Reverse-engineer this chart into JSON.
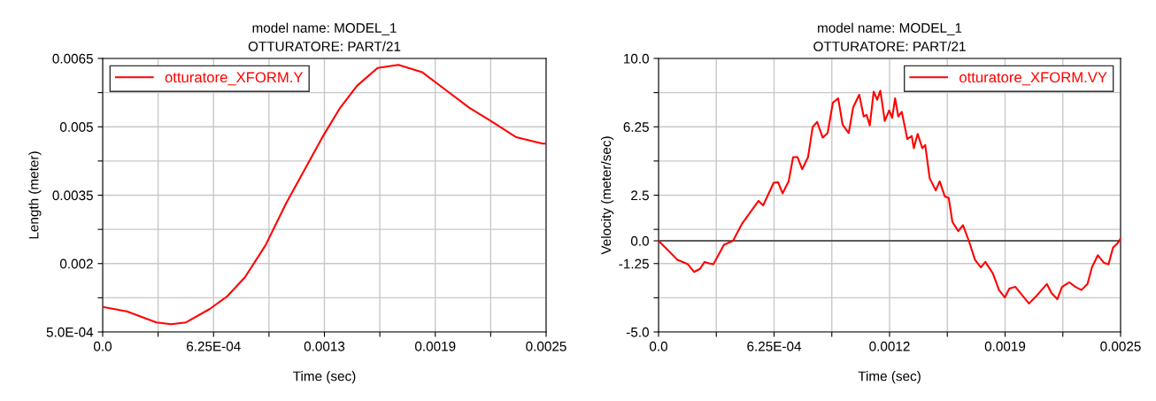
{
  "chart_data": [
    {
      "type": "line",
      "title": "model name: MODEL_1",
      "subtitle": "OTTURATORE: PART/21",
      "xlabel": "Time (sec)",
      "ylabel": "Length (meter)",
      "series": [
        {
          "name": "otturatore_XFORM.Y",
          "color": "#ff0000",
          "x": [
            0,
            0.000136,
            0.000303,
            0.000386,
            0.00047,
            0.000602,
            0.000702,
            0.000802,
            0.000918,
            0.001034,
            0.001134,
            0.001234,
            0.001334,
            0.001434,
            0.00155,
            0.001667,
            0.0018,
            0.001933,
            0.002066,
            0.0022,
            0.002332,
            0.00248,
            0.0025
          ],
          "values": [
            0.00105,
            0.00095,
            0.00071,
            0.00067,
            0.00071,
            0.001,
            0.00128,
            0.0017,
            0.0024,
            0.00332,
            0.00403,
            0.00474,
            0.00539,
            0.0059,
            0.00629,
            0.00636,
            0.0062,
            0.00581,
            0.00542,
            0.0051,
            0.00477,
            0.00463,
            0.00463
          ]
        }
      ],
      "xlim": [
        0,
        0.0025
      ],
      "ylim": [
        0.0005,
        0.0065
      ],
      "xticks": [
        {
          "value": 0,
          "label": "0.0"
        },
        {
          "value": 0.0003125,
          "label": null
        },
        {
          "value": 0.000625,
          "label": "6.25E-04"
        },
        {
          "value": 0.0009375,
          "label": null
        },
        {
          "value": 0.00125,
          "label": "0.0013"
        },
        {
          "value": 0.0015625,
          "label": null
        },
        {
          "value": 0.001875,
          "label": "0.0019"
        },
        {
          "value": 0.0021875,
          "label": null
        },
        0.0025
      ],
      "yticks": [
        {
          "value": 0.0005,
          "label": "5.0E-04"
        },
        {
          "value": 0.00125,
          "label": null
        },
        0.002,
        {
          "value": 0.00275,
          "label": null
        },
        0.0035,
        {
          "value": 0.00425,
          "label": null
        },
        0.005,
        {
          "value": 0.00575,
          "label": null
        },
        0.0065
      ],
      "grid": true,
      "legend": "top left",
      "line_style": "solid",
      "marker": "none"
    },
    {
      "type": "line",
      "title": "model name: MODEL_1",
      "subtitle": "OTTURATORE: PART/21",
      "xlabel": "Time (sec)",
      "ylabel": "Velocity (meter/sec)",
      "series": [
        {
          "name": "otturatore_XFORM.VY",
          "color": "#ff0000",
          "x": [
            0,
            0.000102,
            0.000159,
            0.000192,
            0.000224,
            0.000249,
            0.000273,
            0.000297,
            0.000354,
            0.000403,
            0.000452,
            0.000541,
            0.000566,
            0.000623,
            0.000647,
            0.000671,
            0.000704,
            0.000728,
            0.000752,
            0.000777,
            0.000809,
            0.000834,
            0.000858,
            0.000888,
            0.000915,
            0.000943,
            0.000972,
            0.000996,
            0.001029,
            0.001053,
            0.001086,
            0.00111,
            0.001126,
            0.001143,
            0.001164,
            0.001183,
            0.0012,
            0.001224,
            0.001248,
            0.001264,
            0.00128,
            0.001297,
            0.001316,
            0.001346,
            0.00137,
            0.001381,
            0.001402,
            0.001427,
            0.001443,
            0.001467,
            0.0015,
            0.001521,
            0.001549,
            0.00157,
            0.00159,
            0.001622,
            0.001647,
            0.001679,
            0.001712,
            0.001744,
            0.001768,
            0.001809,
            0.001842,
            0.001874,
            0.001898,
            0.001931,
            0.001971,
            0.002004,
            0.002044,
            0.002101,
            0.002126,
            0.002158,
            0.002183,
            0.002223,
            0.002256,
            0.002288,
            0.002321,
            0.002345,
            0.002377,
            0.00241,
            0.002435,
            0.002459,
            0.002484,
            0.0025
          ],
          "values": [
            0,
            -1.04,
            -1.29,
            -1.71,
            -1.54,
            -1.16,
            -1.24,
            -1.29,
            -0.22,
            0,
            0.94,
            2.19,
            1.94,
            3.18,
            3.21,
            2.6,
            3.26,
            4.59,
            4.59,
            3.92,
            4.59,
            6.24,
            6.52,
            5.66,
            5.91,
            7.57,
            7.81,
            6.36,
            5.91,
            7.32,
            8.01,
            6.82,
            6.9,
            6.32,
            8.18,
            7.73,
            8.23,
            6.57,
            7.15,
            6.74,
            7.81,
            6.82,
            7.07,
            5.58,
            5.75,
            5.08,
            5.86,
            5.08,
            5.25,
            3.43,
            2.76,
            3.26,
            2.43,
            2.35,
            1.03,
            0.53,
            0.86,
            0,
            -1.04,
            -1.46,
            -1.16,
            -1.79,
            -2.7,
            -3.11,
            -2.62,
            -2.53,
            -3.03,
            -3.44,
            -3.03,
            -2.37,
            -2.86,
            -3.2,
            -2.53,
            -2.28,
            -2.53,
            -2.7,
            -2.37,
            -1.46,
            -0.79,
            -1.21,
            -1.29,
            -0.38,
            -0.13,
            0.12
          ]
        }
      ],
      "xlim": [
        0,
        0.0025
      ],
      "ylim": [
        -5,
        10
      ],
      "xticks": [
        {
          "value": 0,
          "label": "0.0"
        },
        {
          "value": 0.0003125,
          "label": null
        },
        {
          "value": 0.000625,
          "label": "6.25E-04"
        },
        {
          "value": 0.0009375,
          "label": null
        },
        {
          "value": 0.00125,
          "label": "0.0012"
        },
        {
          "value": 0.0015625,
          "label": null
        },
        {
          "value": 0.001875,
          "label": "0.0019"
        },
        {
          "value": 0.0021875,
          "label": null
        },
        0.0025
      ],
      "yticks": [
        {
          "value": -5,
          "label": "-5.0"
        },
        {
          "value": -3.125,
          "label": null
        },
        -1.25,
        {
          "value": 0,
          "label": "0.0"
        },
        {
          "value": 0.625,
          "label": null
        },
        2.5,
        {
          "value": 4.375,
          "label": null
        },
        6.25,
        {
          "value": 8.125,
          "label": null
        },
        {
          "value": 10,
          "label": "10.0"
        }
      ],
      "ref_lines": [
        {
          "axis": "y",
          "value": 0,
          "label": null,
          "color": "#333333"
        }
      ],
      "grid": true,
      "legend": "top right",
      "line_style": "solid",
      "marker": "none"
    }
  ]
}
